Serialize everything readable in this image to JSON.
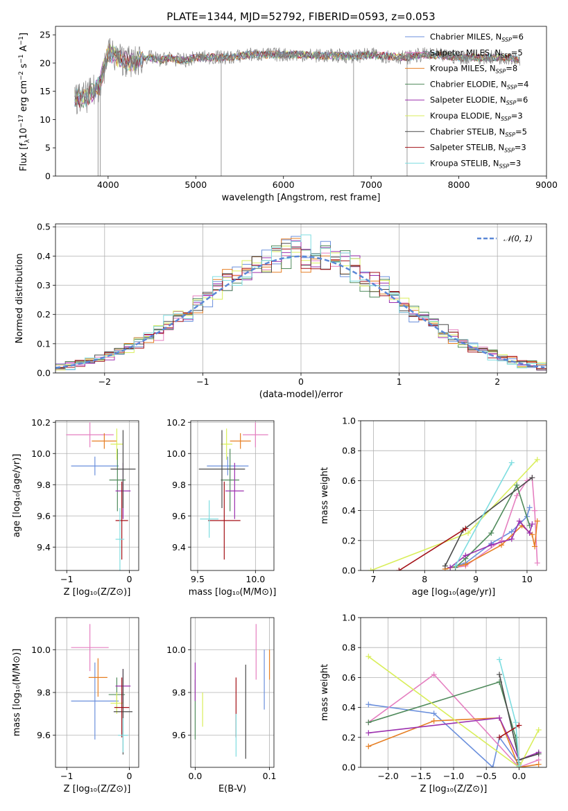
{
  "title": "PLATE=1344, MJD=52792, FIBERID=0593, z=0.053",
  "colors": [
    "#6a8fdc",
    "#e57fc0",
    "#e67e22",
    "#4f8a5b",
    "#9b2fae",
    "#d9ee5a",
    "#4a4a4a",
    "#a30f15",
    "#7ddde0"
  ],
  "legend_spectrum": [
    {
      "name": "Chabrier MILES",
      "nssp": "6"
    },
    {
      "name": "Salpeter MILES",
      "nssp": "5"
    },
    {
      "name": "Kroupa MILES",
      "nssp": "8"
    },
    {
      "name": "Chabrier ELODIE",
      "nssp": "4"
    },
    {
      "name": "Salpeter ELODIE",
      "nssp": "6"
    },
    {
      "name": "Kroupa ELODIE",
      "nssp": "3"
    },
    {
      "name": "Chabrier STELIB",
      "nssp": "5"
    },
    {
      "name": "Salpeter STELIB",
      "nssp": "3"
    },
    {
      "name": "Kroupa STELIB",
      "nssp": "3"
    }
  ],
  "legend_resid": "𝒩(0, 1)",
  "chart_data": [
    {
      "id": "spectrum",
      "type": "line",
      "xlabel": "wavelength [Angstrom, rest frame]",
      "xlim": [
        3400,
        9000
      ],
      "ylim": [
        0,
        26.5
      ],
      "xticks": [
        4000,
        5000,
        6000,
        7000,
        8000,
        9000
      ],
      "yticks": [
        0,
        5,
        10,
        15,
        20,
        25
      ],
      "x": [
        3620,
        3700,
        3800,
        3900,
        4000,
        4100,
        4200,
        4300,
        4400,
        4500,
        4600,
        4700,
        4800,
        4900,
        5000,
        5200,
        5400,
        5600,
        5800,
        6000,
        6200,
        6400,
        6600,
        6800,
        7000,
        7200,
        7400,
        7600,
        7800,
        8000,
        8200,
        8400,
        8600,
        8700
      ],
      "y": [
        14,
        13.5,
        14.5,
        16,
        22,
        21,
        20.5,
        20,
        21,
        21,
        20.5,
        21,
        20.5,
        20.5,
        21,
        21,
        21,
        21.5,
        21.5,
        21.5,
        21.5,
        21.3,
        21.3,
        21.2,
        21.5,
        21.2,
        21,
        21.5,
        21.3,
        21,
        21,
        21,
        21,
        20.5
      ]
    },
    {
      "id": "residuals",
      "type": "line",
      "ylabel": "Normed distribution",
      "xlabel": "(data-model)/error",
      "xlim": [
        -2.5,
        2.5
      ],
      "ylim": [
        0,
        0.51
      ],
      "xticks": [
        -2,
        -1,
        0,
        1,
        2
      ],
      "yticks": [
        0.0,
        0.1,
        0.2,
        0.3,
        0.4,
        0.5
      ],
      "bin_width": 0.1
    },
    {
      "id": "age-vs-z",
      "type": "scatter",
      "ylabel": "age  [log₁₀(age/yr)]",
      "xlabel": "Z [log₁₀(Z/Z⊙)]",
      "xlim": [
        -1.18,
        0.15
      ],
      "ylim": [
        9.25,
        10.21
      ],
      "xticks": [
        -1,
        0
      ],
      "yticks": [
        9.4,
        9.6,
        9.8,
        10.0,
        10.2
      ],
      "points": [
        {
          "x": -0.55,
          "y": 9.92,
          "xerr": 0.38,
          "yerr": 0.06
        },
        {
          "x": -0.63,
          "y": 10.12,
          "xerr": 0.38,
          "yerr": 0.08
        },
        {
          "x": -0.4,
          "y": 10.08,
          "xerr": 0.2,
          "yerr": 0.05
        },
        {
          "x": -0.19,
          "y": 9.83,
          "xerr": 0.13,
          "yerr": 0.2
        },
        {
          "x": -0.1,
          "y": 9.76,
          "xerr": 0.12,
          "yerr": 0.18
        },
        {
          "x": -0.2,
          "y": 10.06,
          "xerr": 0.1,
          "yerr": 0.1
        },
        {
          "x": -0.1,
          "y": 9.9,
          "xerr": 0.2,
          "yerr": 0.25
        },
        {
          "x": -0.12,
          "y": 9.57,
          "xerr": 0.1,
          "yerr": 0.25
        },
        {
          "x": -0.15,
          "y": 9.45,
          "xerr": 0.07,
          "yerr": 0.2
        }
      ]
    },
    {
      "id": "age-vs-mass",
      "type": "scatter",
      "xlabel": "mass [log₁₀(M/M⊙)]",
      "xlim": [
        9.44,
        10.16
      ],
      "ylim": [
        9.25,
        10.21
      ],
      "xticks": [
        9.5,
        10.0
      ],
      "yticks": [
        9.4,
        9.6,
        9.8,
        10.0,
        10.2
      ],
      "points": [
        {
          "x": 9.76,
          "y": 9.92,
          "xerr": 0.18,
          "yerr": 0.06
        },
        {
          "x": 10.0,
          "y": 10.12,
          "xerr": 0.11,
          "yerr": 0.08
        },
        {
          "x": 9.87,
          "y": 10.08,
          "xerr": 0.09,
          "yerr": 0.05
        },
        {
          "x": 9.78,
          "y": 9.83,
          "xerr": 0.08,
          "yerr": 0.2
        },
        {
          "x": 9.82,
          "y": 9.76,
          "xerr": 0.08,
          "yerr": 0.18
        },
        {
          "x": 9.75,
          "y": 10.06,
          "xerr": 0.05,
          "yerr": 0.1
        },
        {
          "x": 9.71,
          "y": 9.9,
          "xerr": 0.2,
          "yerr": 0.25
        },
        {
          "x": 9.73,
          "y": 9.57,
          "xerr": 0.14,
          "yerr": 0.25
        },
        {
          "x": 9.6,
          "y": 9.58,
          "xerr": 0.08,
          "yerr": 0.12
        }
      ]
    },
    {
      "id": "weight-vs-age",
      "type": "line",
      "ylabel": "mass weight",
      "xlabel": "age  [log₁₀(age/yr)]",
      "xlim": [
        6.75,
        10.38
      ],
      "ylim": [
        0,
        1.0
      ],
      "xticks": [
        7,
        8,
        9,
        10
      ],
      "yticks": [
        0.0,
        0.2,
        0.4,
        0.6,
        0.8,
        1.0
      ],
      "series": [
        {
          "x": [
            8.5,
            8.8,
            9.3,
            9.7,
            10.0,
            10.05
          ],
          "y": [
            0.02,
            0.05,
            0.18,
            0.26,
            0.36,
            0.42
          ]
        },
        {
          "x": [
            8.6,
            8.8,
            9.5,
            9.8,
            10.0,
            10.1,
            10.15,
            10.2
          ],
          "y": [
            0.02,
            0.03,
            0.2,
            0.5,
            0.6,
            0.62,
            0.4,
            0.05
          ]
        },
        {
          "x": [
            8.4,
            8.8,
            9.5,
            9.9,
            10.1,
            10.15,
            10.2
          ],
          "y": [
            0.01,
            0.04,
            0.17,
            0.3,
            0.24,
            0.16,
            0.33
          ]
        },
        {
          "x": [
            8.6,
            8.8,
            9.3,
            9.8,
            10.05
          ],
          "y": [
            0.02,
            0.08,
            0.25,
            0.57,
            0.3
          ]
        },
        {
          "x": [
            8.5,
            8.8,
            9.3,
            9.7,
            9.85,
            10.05,
            10.1
          ],
          "y": [
            0.02,
            0.1,
            0.17,
            0.21,
            0.33,
            0.25,
            0.31
          ]
        },
        {
          "x": [
            6.95,
            8.85,
            10.2
          ],
          "y": [
            0.0,
            0.25,
            0.74
          ]
        },
        {
          "x": [
            8.4,
            8.75,
            10.1
          ],
          "y": [
            0.03,
            0.27,
            0.62
          ]
        },
        {
          "x": [
            7.5,
            8.8
          ],
          "y": [
            0.0,
            0.28
          ]
        },
        {
          "x": [
            8.6,
            9.7
          ],
          "y": [
            0.03,
            0.72
          ]
        }
      ]
    },
    {
      "id": "mass-vs-z",
      "type": "scatter",
      "ylabel": "mass [log₁₀(M/M⊙)]",
      "xlabel": "Z [log₁₀(Z/Z⊙)]",
      "xlim": [
        -1.18,
        0.15
      ],
      "ylim": [
        9.45,
        10.15
      ],
      "xticks": [
        -1,
        0
      ],
      "yticks": [
        9.6,
        9.8,
        10.0
      ],
      "points": [
        {
          "x": -0.55,
          "y": 9.76,
          "xerr": 0.38,
          "yerr": 0.18
        },
        {
          "x": -0.63,
          "y": 10.01,
          "xerr": 0.3,
          "yerr": 0.11
        },
        {
          "x": -0.5,
          "y": 9.87,
          "xerr": 0.15,
          "yerr": 0.09
        },
        {
          "x": -0.2,
          "y": 9.79,
          "xerr": 0.13,
          "yerr": 0.08
        },
        {
          "x": -0.1,
          "y": 9.83,
          "xerr": 0.12,
          "yerr": 0.08
        },
        {
          "x": -0.2,
          "y": 9.75,
          "xerr": 0.1,
          "yerr": 0.05
        },
        {
          "x": -0.1,
          "y": 9.71,
          "xerr": 0.15,
          "yerr": 0.2
        },
        {
          "x": -0.12,
          "y": 9.73,
          "xerr": 0.12,
          "yerr": 0.14
        },
        {
          "x": -0.1,
          "y": 9.6,
          "xerr": 0.08,
          "yerr": 0.08
        }
      ]
    },
    {
      "id": "mass-vs-ebv",
      "type": "scatter",
      "xlabel": "E(B-V)",
      "xlim": [
        -0.006,
        0.106
      ],
      "ylim": [
        9.45,
        10.15
      ],
      "xticks": [
        0.0,
        0.1
      ],
      "yticks": [
        9.6,
        9.8,
        10.0
      ],
      "points": [
        {
          "x": 0.093,
          "y": 9.86,
          "xerr": 0,
          "yerr": 0.14
        },
        {
          "x": 0.082,
          "y": 9.99,
          "xerr": 0,
          "yerr": 0.13
        },
        {
          "x": 0.1,
          "y": 9.93,
          "xerr": 0,
          "yerr": 0.07
        },
        {
          "x": 0.0,
          "y": 9.72,
          "xerr": 0,
          "yerr": 0.14
        },
        {
          "x": 0.0,
          "y": 9.85,
          "xerr": 0,
          "yerr": 0.09
        },
        {
          "x": 0.01,
          "y": 9.72,
          "xerr": 0,
          "yerr": 0.08
        },
        {
          "x": 0.068,
          "y": 9.71,
          "xerr": 0,
          "yerr": 0.22
        },
        {
          "x": 0.055,
          "y": 9.73,
          "xerr": 0,
          "yerr": 0.14
        },
        {
          "x": 0.055,
          "y": 9.6,
          "xerr": 0,
          "yerr": 0.1
        }
      ]
    },
    {
      "id": "weight-vs-z",
      "type": "line",
      "ylabel": "mass weight",
      "xlabel": "Z [log₁₀(Z/Z⊙)]",
      "xlim": [
        -2.42,
        0.42
      ],
      "ylim": [
        0,
        1.0
      ],
      "xticks": [
        -2.0,
        -1.5,
        -1.0,
        -0.5,
        0.0
      ],
      "yticks": [
        0.0,
        0.2,
        0.4,
        0.6,
        0.8,
        1.0
      ],
      "series": [
        {
          "x": [
            -2.3,
            -1.3,
            -0.4,
            -0.3,
            0.0
          ],
          "y": [
            0.42,
            0.36,
            0.0,
            0.2,
            0.02
          ]
        },
        {
          "x": [
            -2.3,
            -1.3,
            0.0,
            0.3
          ],
          "y": [
            0.3,
            0.62,
            0.0,
            0.05
          ]
        },
        {
          "x": [
            -2.3,
            -1.3,
            -0.3,
            0.0,
            0.3
          ],
          "y": [
            0.14,
            0.31,
            0.33,
            0.0,
            0.02
          ]
        },
        {
          "x": [
            -2.3,
            -0.3,
            -0.05,
            0.0
          ],
          "y": [
            0.3,
            0.57,
            0.2,
            0.03
          ]
        },
        {
          "x": [
            -2.3,
            -0.3,
            0.0,
            0.3
          ],
          "y": [
            0.23,
            0.33,
            0.05,
            0.1
          ]
        },
        {
          "x": [
            -2.3,
            0.0,
            0.3
          ],
          "y": [
            0.74,
            0.0,
            0.25
          ]
        },
        {
          "x": [
            -0.3,
            0.0,
            0.3
          ],
          "y": [
            0.62,
            0.05,
            0.09
          ]
        },
        {
          "x": [
            -0.3,
            0.0
          ],
          "y": [
            0.2,
            0.28
          ]
        },
        {
          "x": [
            -0.3,
            -0.05,
            0.0
          ],
          "y": [
            0.72,
            0.3,
            0.01
          ]
        }
      ]
    }
  ]
}
